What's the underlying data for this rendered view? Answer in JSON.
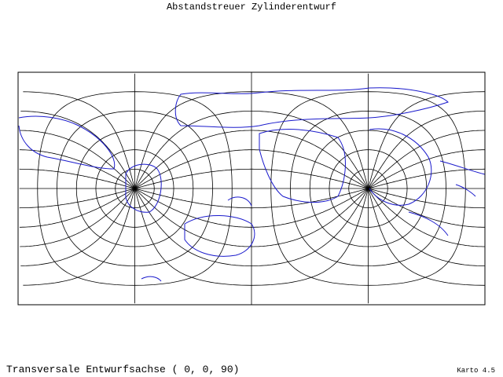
{
  "title": "Abstandstreuer Zylinderentwurf",
  "caption": "Transversale Entwurfsachse ( 0, 0, 90)",
  "version": "Karto 4.5"
}
